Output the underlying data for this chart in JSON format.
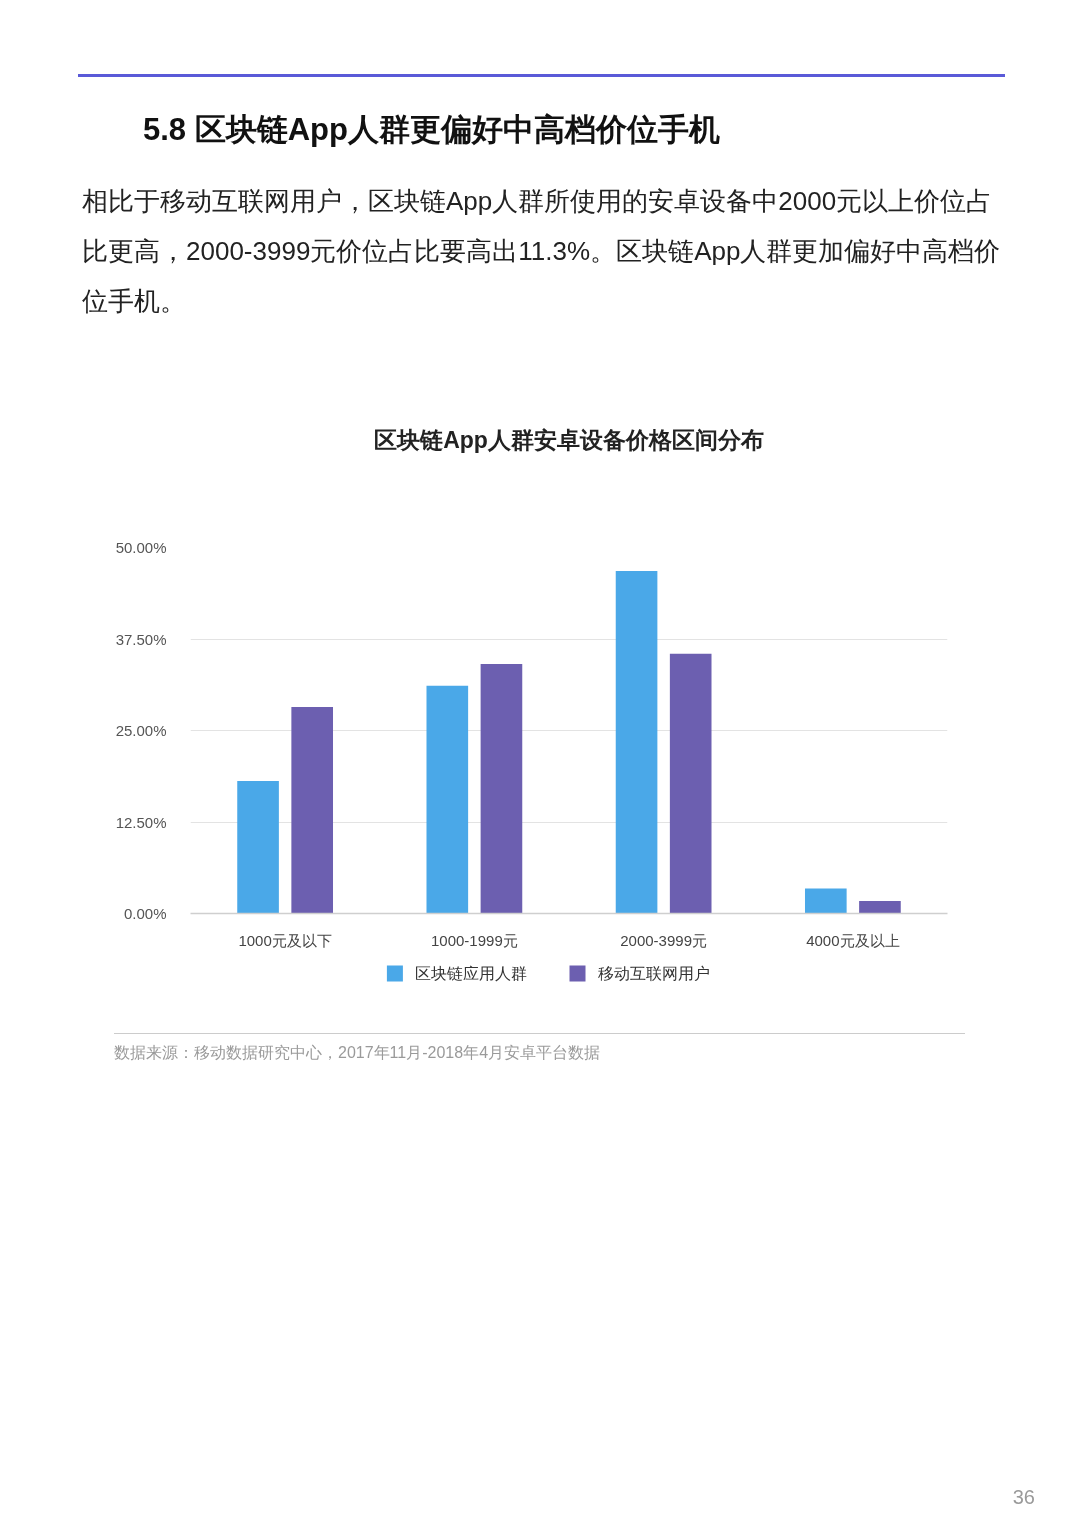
{
  "chart_data": {
    "type": "bar",
    "title": "区块链App人群安卓设备价格区间分布",
    "categories": [
      "1000元及以下",
      "1000-1999元",
      "2000-3999元",
      "4000元及以上"
    ],
    "series": [
      {
        "name": "区块链应用人群",
        "color": "#4aa8e8",
        "values": [
          18.1,
          31.1,
          46.8,
          3.4
        ]
      },
      {
        "name": "移动互联网用户",
        "color": "#6c5fb0",
        "values": [
          28.2,
          34.1,
          35.5,
          1.7
        ]
      }
    ],
    "ylim": [
      0,
      50
    ],
    "yticks": [
      {
        "value": 0,
        "label": "0.00%"
      },
      {
        "value": 12.5,
        "label": "12.50%"
      },
      {
        "value": 25,
        "label": "25.00%"
      },
      {
        "value": 37.5,
        "label": "37.50%"
      },
      {
        "value": 50,
        "label": "50.00%"
      }
    ],
    "grid": "y",
    "legend": "bottom",
    "annotations": [
      "5.8 区块链App人群更偏好中高档价位手机",
      "相比于移动互联网用户，区块链App人群所使用的安卓设备中2000元以上价位占比更高，2000-3999元价位占比要高出11.3%。区块链App人群更加偏好中高档价位手机。",
      "数据来源：移动数据研究中心，2017年11月-2018年4月安卓平台数据",
      "36"
    ]
  }
}
